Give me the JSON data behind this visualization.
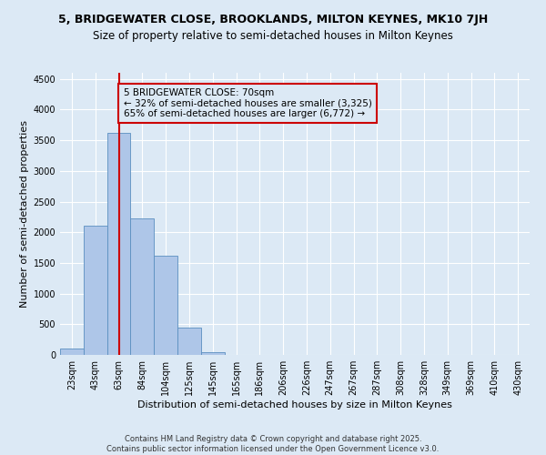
{
  "title": "5, BRIDGEWATER CLOSE, BROOKLANDS, MILTON KEYNES, MK10 7JH",
  "subtitle": "Size of property relative to semi-detached houses in Milton Keynes",
  "xlabel": "Distribution of semi-detached houses by size in Milton Keynes",
  "ylabel": "Number of semi-detached properties",
  "footer_line1": "Contains HM Land Registry data © Crown copyright and database right 2025.",
  "footer_line2": "Contains public sector information licensed under the Open Government Licence v3.0.",
  "bar_labels": [
    "23sqm",
    "43sqm",
    "63sqm",
    "84sqm",
    "104sqm",
    "125sqm",
    "145sqm",
    "165sqm",
    "186sqm",
    "206sqm",
    "226sqm",
    "247sqm",
    "267sqm",
    "287sqm",
    "308sqm",
    "328sqm",
    "349sqm",
    "369sqm",
    "410sqm",
    "430sqm"
  ],
  "bar_values": [
    100,
    2100,
    3620,
    2220,
    1620,
    450,
    50,
    0,
    0,
    0,
    0,
    0,
    0,
    0,
    0,
    0,
    0,
    0,
    0,
    0
  ],
  "bar_color": "#aec6e8",
  "bar_edge_color": "#5a8fc0",
  "ylim": [
    0,
    4600
  ],
  "yticks": [
    0,
    500,
    1000,
    1500,
    2000,
    2500,
    3000,
    3500,
    4000,
    4500
  ],
  "property_bin_index": 2,
  "annotation_title": "5 BRIDGEWATER CLOSE: 70sqm",
  "annotation_line1": "← 32% of semi-detached houses are smaller (3,325)",
  "annotation_line2": "65% of semi-detached houses are larger (6,772) →",
  "background_color": "#dce9f5",
  "plot_background_color": "#dce9f5",
  "annotation_box_color": "#dce9f5",
  "annotation_box_edge_color": "#cc0000",
  "red_line_color": "#cc0000",
  "grid_color": "#ffffff",
  "title_fontsize": 9,
  "subtitle_fontsize": 8.5,
  "ylabel_fontsize": 8,
  "xlabel_fontsize": 8,
  "tick_fontsize": 7,
  "annotation_fontsize": 7.5,
  "footer_fontsize": 6
}
